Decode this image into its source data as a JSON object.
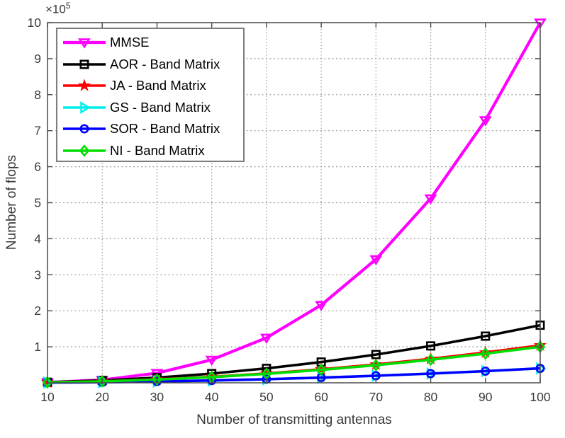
{
  "figure": {
    "background": "#ffffff",
    "axis_color": "#4a4a4a",
    "grid_color": "#999999",
    "tick_label_color": "#3a3a3a"
  },
  "chart_data": {
    "type": "line",
    "title": "",
    "xlabel": "Number of transmitting antennas",
    "ylabel": "Number of flops",
    "y_multiplier": {
      "base": "×10",
      "exp": "5"
    },
    "xlim": [
      10,
      100
    ],
    "ylim": [
      0,
      1000000
    ],
    "x_ticks": [
      10,
      20,
      30,
      40,
      50,
      60,
      70,
      80,
      90,
      100
    ],
    "y_ticks": [
      1,
      2,
      3,
      4,
      5,
      6,
      7,
      8,
      9,
      10
    ],
    "y_tick_scale": 100000,
    "grid": true,
    "legend_position": "top-left",
    "x": [
      10,
      20,
      30,
      40,
      50,
      60,
      70,
      80,
      90,
      100
    ],
    "series": [
      {
        "name": "MMSE",
        "color": "#ff00ff",
        "marker": "triangle-down",
        "line_width": 4.2,
        "values": [
          1000,
          8000,
          27000,
          64000,
          125000,
          216000,
          343000,
          512000,
          729000,
          1000000
        ]
      },
      {
        "name": "AOR - Band Matrix",
        "color": "#000000",
        "marker": "square",
        "line_width": 3.6,
        "values": [
          1600,
          6400,
          14400,
          25600,
          40000,
          57600,
          78400,
          102400,
          129600,
          160000
        ]
      },
      {
        "name": "JA - Band Matrix",
        "color": "#ff0000",
        "marker": "pentagram",
        "line_width": 3.6,
        "values": [
          1040,
          4160,
          9360,
          16640,
          26000,
          37440,
          50960,
          66560,
          84240,
          104000
        ]
      },
      {
        "name": "GS - Band Matrix",
        "color": "#00eeee",
        "marker": "triangle-right",
        "line_width": 3.6,
        "values": [
          400,
          1600,
          3600,
          6400,
          10000,
          14400,
          19600,
          25600,
          32400,
          40000
        ]
      },
      {
        "name": "SOR - Band Matrix",
        "color": "#0000ff",
        "marker": "circle",
        "line_width": 3.6,
        "values": [
          400,
          1600,
          3600,
          6400,
          10000,
          14400,
          19600,
          25600,
          32400,
          40000
        ]
      },
      {
        "name": "NI - Band Matrix",
        "color": "#00dd00",
        "marker": "diamond",
        "line_width": 3.6,
        "values": [
          1000,
          4000,
          9000,
          16000,
          25000,
          36000,
          49000,
          64000,
          81000,
          100000
        ]
      }
    ]
  }
}
